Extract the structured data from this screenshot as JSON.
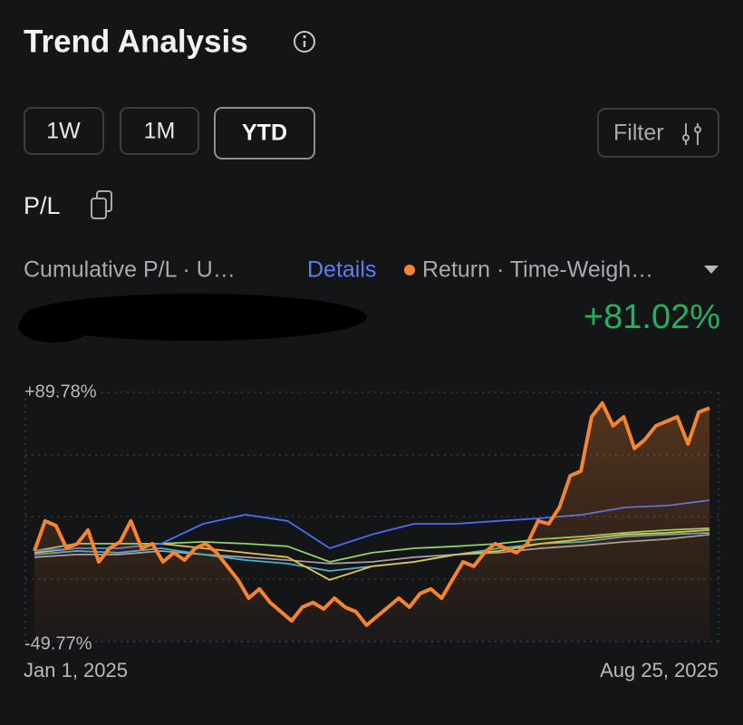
{
  "header": {
    "title": "Trend Analysis"
  },
  "range_buttons": [
    "1W",
    "1M",
    "YTD"
  ],
  "filter": "Filter",
  "section": "P/L",
  "metric": {
    "label": "Cumulative P/L · U…",
    "details": "Details",
    "return_label": "Return · Time-Weigh…",
    "return_value": "+81.02%"
  },
  "chart_data": {
    "type": "line",
    "x_labels": [
      "Jan 1, 2025",
      "Aug 25, 2025"
    ],
    "ylim": [
      -49.77,
      89.78
    ],
    "yticks": [
      {
        "value": 89.78,
        "label": "+89.78%"
      },
      {
        "value": -49.77,
        "label": "-49.77%"
      }
    ],
    "grid": true,
    "series": [
      {
        "color": "#a0a0a8",
        "values": [
          -2.5,
          -1,
          -1,
          1,
          -1,
          -2.5,
          -4.1,
          -6.1,
          -5.1,
          -2.5,
          -1,
          0,
          2.5,
          4.1,
          6.1,
          7.6,
          10.2
        ]
      },
      {
        "color": "#3fb6d9",
        "values": [
          -1,
          1,
          0,
          2.5,
          -1,
          -4.1,
          -6.1,
          -10.2,
          -7.6,
          -5.1,
          -1,
          2.5,
          5.1,
          6.1,
          9.1,
          10.2,
          11.2
        ]
      },
      {
        "color": "#8fd16a",
        "values": [
          1,
          5.1,
          5.1,
          5.1,
          6.1,
          5.1,
          3.6,
          -5.1,
          0,
          2.5,
          3.6,
          5.1,
          7.6,
          9.1,
          11.2,
          12.7,
          13.7
        ]
      },
      {
        "color": "#e8c53a",
        "values": [
          0,
          2.5,
          2.5,
          5.1,
          2.5,
          0,
          -2.5,
          -15.2,
          -7.6,
          -5.1,
          -1,
          1,
          5.1,
          7.6,
          10.2,
          11.2,
          12.7
        ]
      },
      {
        "color": "#4a6cf7",
        "values": [
          1,
          2.5,
          2.5,
          5.1,
          16.2,
          21.3,
          17.8,
          2.5,
          10.2,
          16.2,
          16.2,
          17.8,
          19.3,
          21.3,
          25.4,
          26.4,
          29.4
        ]
      },
      {
        "color": "#f5842c",
        "area": true,
        "values": [
          1,
          17.8,
          15.2,
          2.5,
          5.1,
          12.7,
          -5.1,
          2.5,
          6.1,
          17.8,
          2.5,
          5.1,
          -5.1,
          0,
          -4.1,
          2.5,
          5.1,
          0,
          -7.6,
          -15.2,
          -25.4,
          -20.3,
          -27.9,
          -33,
          -38.1,
          -30.5,
          -27.9,
          -31.5,
          -25.4,
          -30.5,
          -33,
          -40.6,
          -35.5,
          -30.5,
          -25.4,
          -30.5,
          -22.8,
          -20.3,
          -25.4,
          -15.2,
          -5.1,
          -7.6,
          0,
          5.1,
          2.5,
          0,
          5.1,
          17.8,
          16.2,
          25.4,
          43.1,
          45.7,
          76.1,
          83.8,
          71.1,
          76.1,
          58.4,
          63.5,
          71.1,
          73.6,
          76.1,
          60.9,
          78.7,
          81.02
        ]
      }
    ]
  }
}
